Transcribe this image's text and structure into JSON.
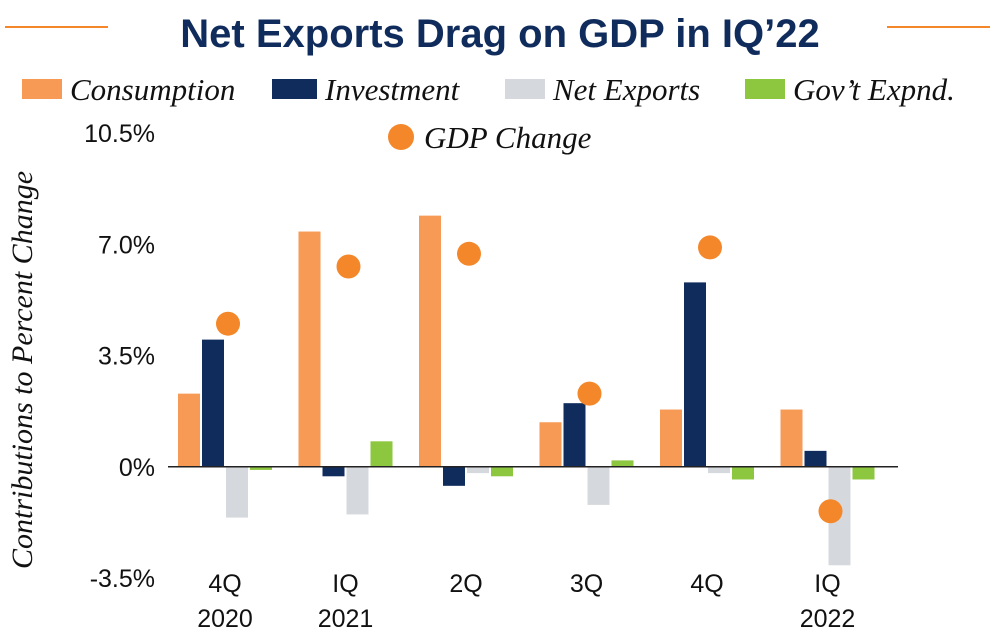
{
  "chart_data": {
    "type": "bar",
    "title": "Net Exports Drag on GDP in IQ’22",
    "xlabel": "",
    "ylabel": "Contributions to Percent Change",
    "ylim": [
      -3.5,
      10.5
    ],
    "yticks": [
      {
        "value": 10.5,
        "label": "10.5%"
      },
      {
        "value": 7.0,
        "label": "7.0%"
      },
      {
        "value": 3.5,
        "label": "3.5%"
      },
      {
        "value": 0,
        "label": "0%"
      },
      {
        "value": -3.5,
        "label": "-3.5%"
      }
    ],
    "categories": [
      {
        "line1": "4Q",
        "line2": "2020"
      },
      {
        "line1": "IQ",
        "line2": "2021"
      },
      {
        "line1": "2Q",
        "line2": ""
      },
      {
        "line1": "3Q",
        "line2": ""
      },
      {
        "line1": "4Q",
        "line2": ""
      },
      {
        "line1": "IQ",
        "line2": "2022"
      }
    ],
    "series": [
      {
        "name": "Consumption",
        "color": "#F79A55",
        "values": [
          2.3,
          7.4,
          7.9,
          1.4,
          1.8,
          1.8
        ]
      },
      {
        "name": "Investment",
        "color": "#0F2C5C",
        "values": [
          4.0,
          -0.3,
          -0.6,
          2.0,
          5.8,
          0.5
        ]
      },
      {
        "name": "Net Exports",
        "color": "#D5D8DC",
        "values": [
          -1.6,
          -1.5,
          -0.2,
          -1.2,
          -0.2,
          -3.1
        ]
      },
      {
        "name": "Gov’t Expnd.",
        "color": "#8DC63F",
        "values": [
          -0.1,
          0.8,
          -0.3,
          0.2,
          -0.4,
          -0.4
        ]
      }
    ],
    "markers": {
      "name": "GDP Change",
      "color": "#F4872A",
      "values": [
        4.5,
        6.3,
        6.7,
        2.3,
        6.9,
        -1.4
      ]
    }
  },
  "colors": {
    "title": "#0F2C5C",
    "accent": "#F4872A",
    "text": "#111111",
    "axis": "#222222"
  }
}
